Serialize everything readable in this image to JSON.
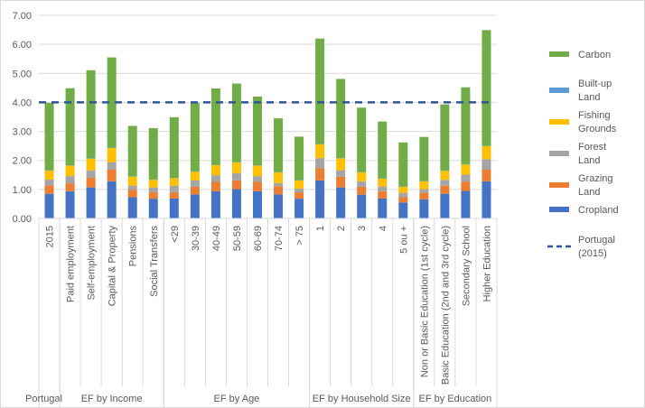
{
  "chart_data": {
    "type": "bar",
    "stacked": true,
    "title": "",
    "xlabel": "",
    "ylabel": "",
    "ylim": [
      0,
      7
    ],
    "yticks": [
      "0.00",
      "1.00",
      "2.00",
      "3.00",
      "4.00",
      "5.00",
      "6.00",
      "7.00"
    ],
    "grid": true,
    "legend_placement": "right",
    "categories": [
      "2015",
      "Paid employment",
      "Self-employment",
      "Capital & Property",
      "Pensions",
      "Social Transfers",
      "<29",
      "30-39",
      "40-49",
      "50-59",
      "60-69",
      "70-74",
      "> 75",
      "1",
      "2",
      "3",
      "4",
      "5 ou +",
      "Non or Basic Education (1st cycle)",
      "Basic Education (2nd and 3rd cycle)",
      "Secondary School",
      "Higher Education"
    ],
    "groups": [
      {
        "label": "Portugal",
        "count": 1
      },
      {
        "label": "EF by Income",
        "count": 5
      },
      {
        "label": "EF by Age",
        "count": 7
      },
      {
        "label": "EF by Household Size",
        "count": 5
      },
      {
        "label": "EF by Education",
        "count": 4
      }
    ],
    "series": [
      {
        "name": "Cropland",
        "color": "#4472C4",
        "values": [
          0.85,
          0.94,
          1.07,
          1.28,
          0.73,
          0.68,
          0.69,
          0.83,
          0.94,
          1.01,
          0.94,
          0.83,
          0.68,
          1.31,
          1.07,
          0.82,
          0.69,
          0.55,
          0.66,
          0.85,
          0.95,
          1.28
        ]
      },
      {
        "name": "Grazing Land",
        "color": "#ED7D31",
        "values": [
          0.29,
          0.27,
          0.33,
          0.4,
          0.25,
          0.22,
          0.21,
          0.26,
          0.32,
          0.3,
          0.32,
          0.28,
          0.22,
          0.42,
          0.37,
          0.27,
          0.24,
          0.18,
          0.23,
          0.28,
          0.32,
          0.4
        ]
      },
      {
        "name": "Forest Land",
        "color": "#A5A5A5",
        "values": [
          0.2,
          0.25,
          0.26,
          0.26,
          0.15,
          0.17,
          0.23,
          0.22,
          0.23,
          0.25,
          0.2,
          0.11,
          0.13,
          0.35,
          0.22,
          0.19,
          0.17,
          0.15,
          0.12,
          0.2,
          0.24,
          0.36
        ]
      },
      {
        "name": "Fishing Grounds",
        "color": "#FFC000",
        "values": [
          0.31,
          0.36,
          0.4,
          0.49,
          0.31,
          0.26,
          0.25,
          0.3,
          0.35,
          0.37,
          0.36,
          0.37,
          0.28,
          0.47,
          0.41,
          0.31,
          0.27,
          0.21,
          0.27,
          0.31,
          0.35,
          0.45
        ]
      },
      {
        "name": "Built-up Land",
        "color": "#5B9BD5",
        "values": [
          0.01,
          0.01,
          0.01,
          0.01,
          0.01,
          0.01,
          0.01,
          0.01,
          0.01,
          0.01,
          0.01,
          0.01,
          0.01,
          0.01,
          0.01,
          0.01,
          0.01,
          0.01,
          0.01,
          0.01,
          0.01,
          0.01
        ]
      },
      {
        "name": "Carbon",
        "color": "#70AD47",
        "values": [
          2.32,
          2.66,
          3.04,
          3.11,
          1.74,
          1.77,
          2.1,
          2.36,
          2.63,
          2.71,
          2.37,
          1.85,
          1.5,
          3.64,
          2.73,
          2.22,
          1.96,
          1.52,
          1.52,
          2.28,
          2.65,
          3.99
        ]
      }
    ],
    "reference_line": {
      "name": "Portugal (2015)",
      "value": 4.0,
      "color": "#2F5597"
    },
    "legend": [
      {
        "lines": [
          "Carbon"
        ],
        "color": "#70AD47",
        "type": "box"
      },
      {
        "lines": [
          "Built-up",
          "Land"
        ],
        "color": "#5B9BD5",
        "type": "box"
      },
      {
        "lines": [
          "Fishing",
          "Grounds"
        ],
        "color": "#FFC000",
        "type": "box"
      },
      {
        "lines": [
          "Forest",
          "Land"
        ],
        "color": "#A5A5A5",
        "type": "box"
      },
      {
        "lines": [
          "Grazing",
          "Land"
        ],
        "color": "#ED7D31",
        "type": "box"
      },
      {
        "lines": [
          "Cropland"
        ],
        "color": "#4472C4",
        "type": "box"
      },
      {
        "lines": [
          "Portugal",
          "(2015)"
        ],
        "color": "#2F5597",
        "type": "dash"
      }
    ]
  }
}
